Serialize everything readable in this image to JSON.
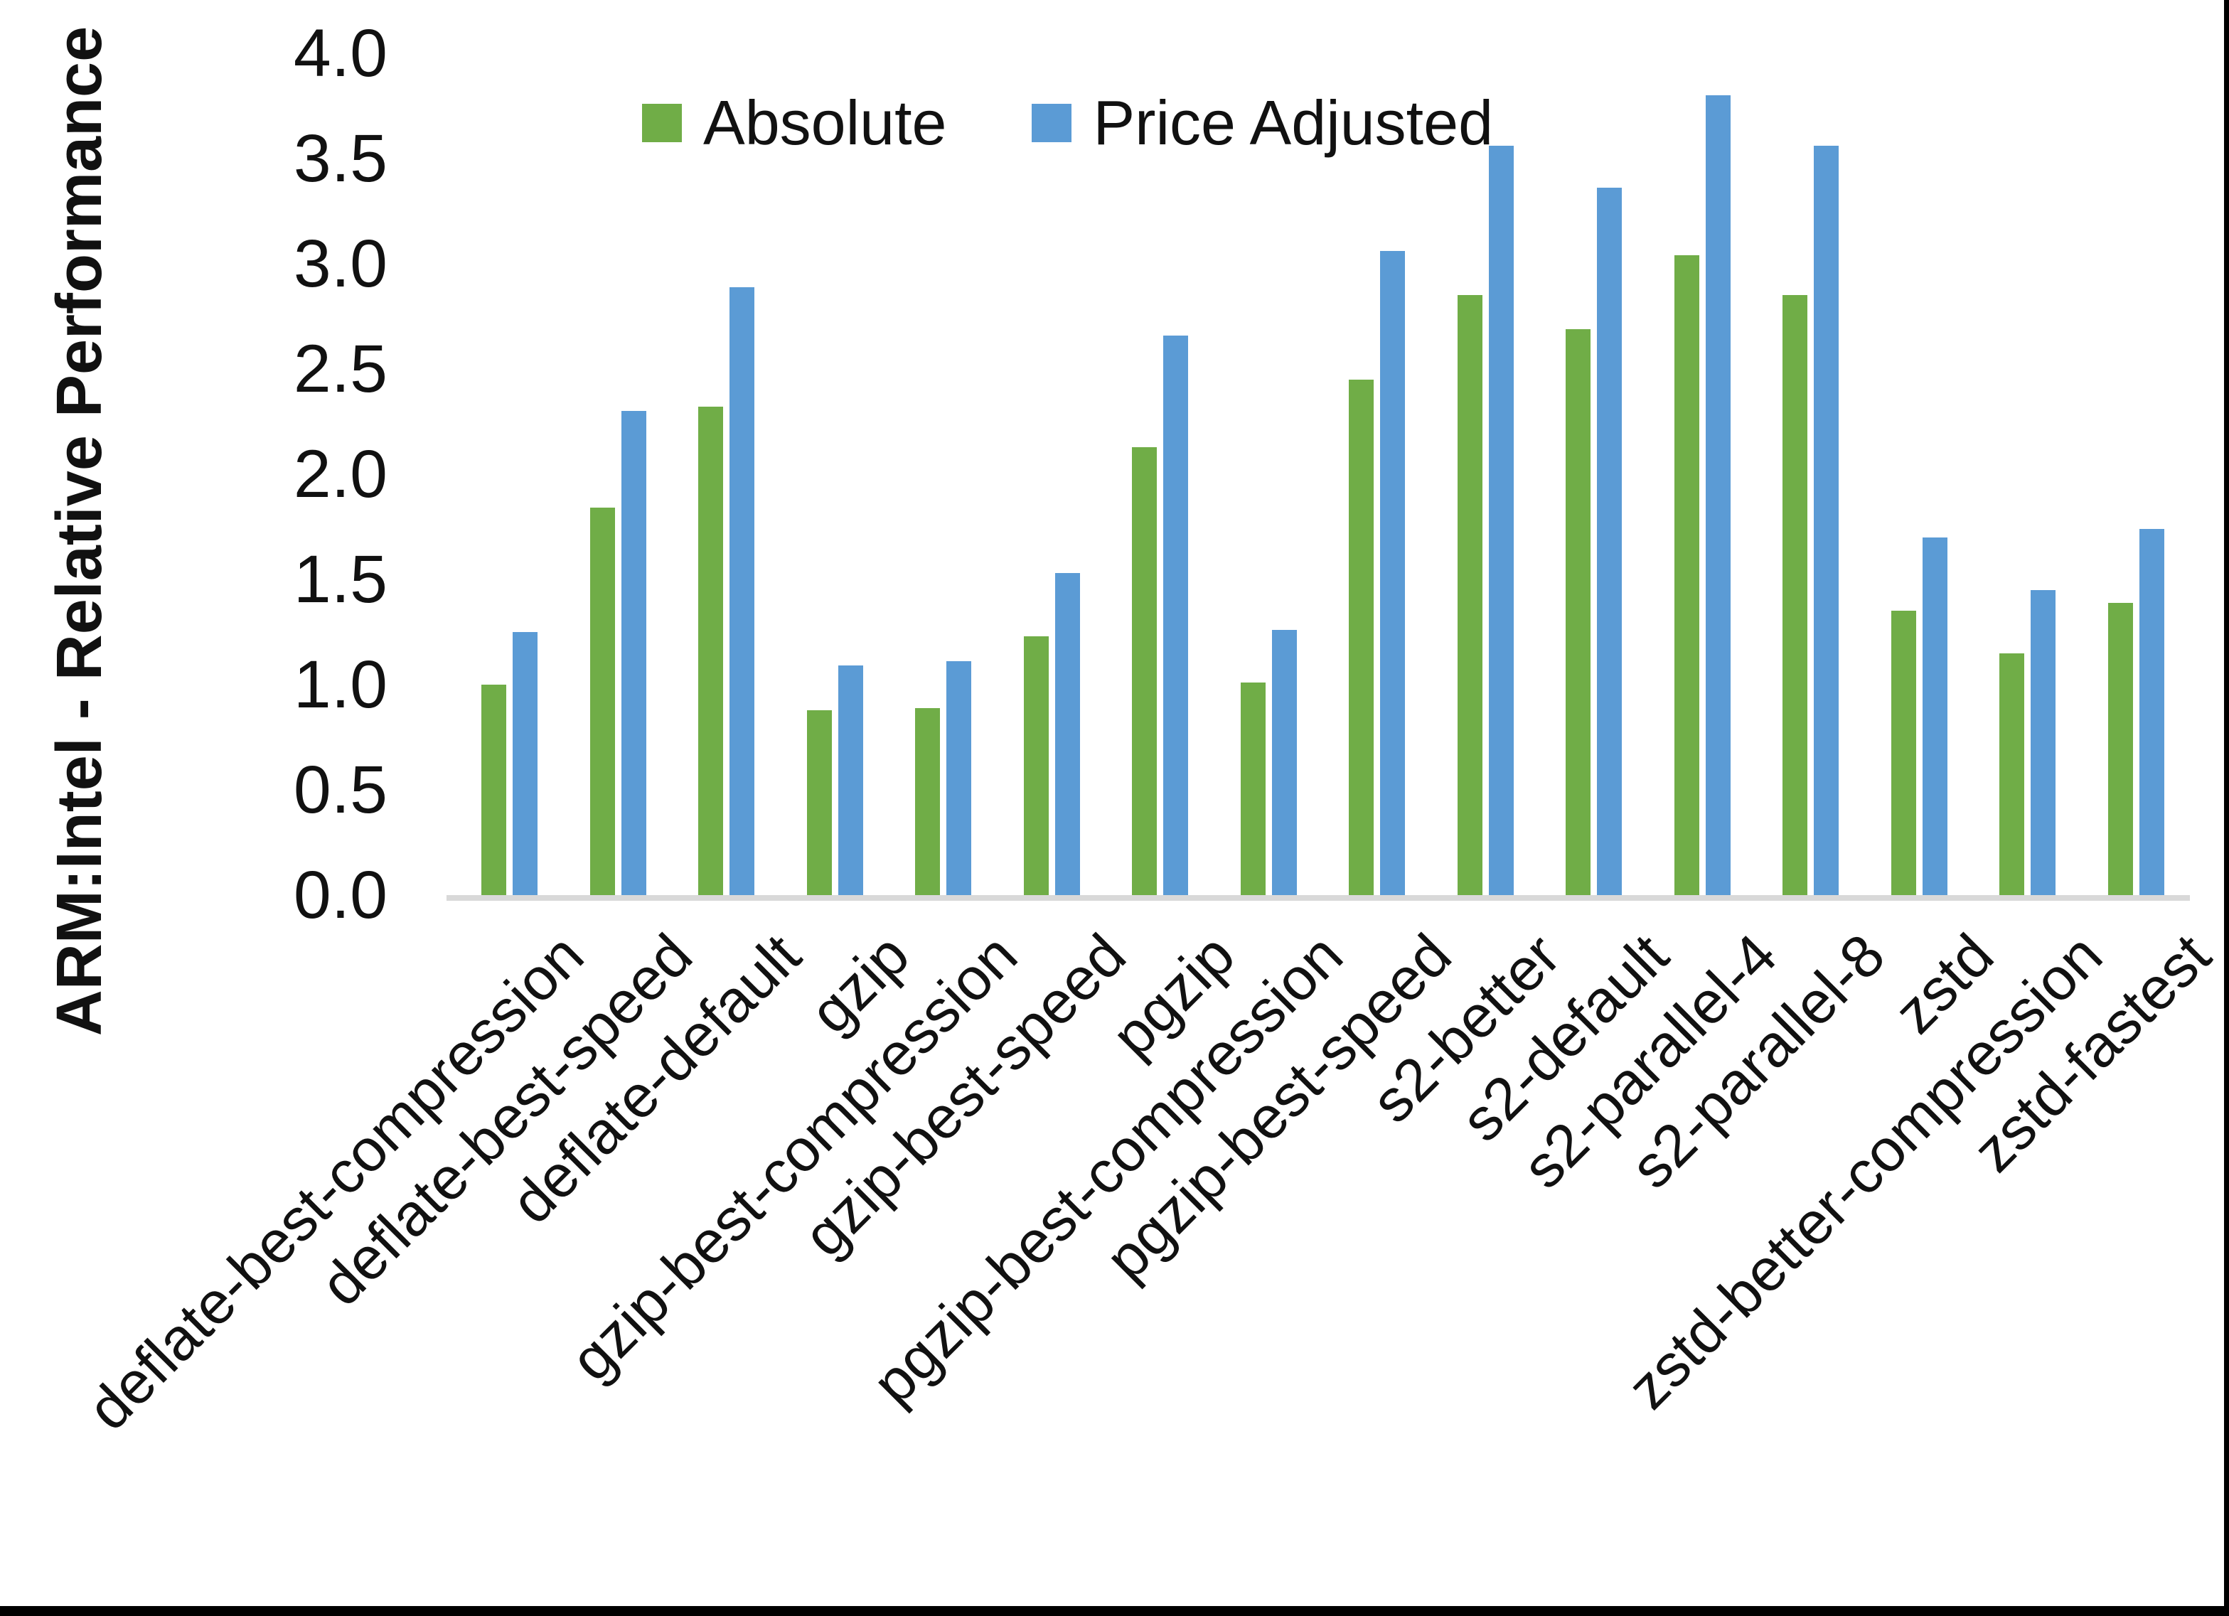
{
  "chart_data": {
    "type": "bar",
    "title": "",
    "ylabel": "ARM:Intel - Relative Performance",
    "xlabel": "",
    "ylim": [
      0.0,
      4.0
    ],
    "ytick_step": 0.5,
    "ytick_format_decimals": 1,
    "grid": false,
    "legend_position": "top-center",
    "categories": [
      "deflate-best-compression",
      "deflate-best-speed",
      "deflate-default",
      "gzip",
      "gzip-best-compression",
      "gzip-best-speed",
      "pgzip",
      "pgzip-best-compression",
      "pgzip-best-speed",
      "s2-better",
      "s2-default",
      "s2-parallel-4",
      "s2-parallel-8",
      "zstd",
      "zstd-better-compression",
      "zstd-fastest"
    ],
    "series": [
      {
        "name": "Absolute",
        "color": "#70AD47",
        "values": [
          1.0,
          1.84,
          2.32,
          0.88,
          0.89,
          1.23,
          2.13,
          1.01,
          2.45,
          2.85,
          2.69,
          3.04,
          2.85,
          1.35,
          1.15,
          1.39
        ]
      },
      {
        "name": "Price Adjusted",
        "color": "#5B9BD5",
        "values": [
          1.25,
          2.3,
          2.89,
          1.09,
          1.11,
          1.53,
          2.66,
          1.26,
          3.06,
          3.56,
          3.36,
          3.8,
          3.56,
          1.7,
          1.45,
          1.74
        ]
      }
    ],
    "colors": {
      "axis_line": "#d9d9d9",
      "text": "#111111",
      "background": "#ffffff",
      "frame_border": "#000000"
    }
  }
}
